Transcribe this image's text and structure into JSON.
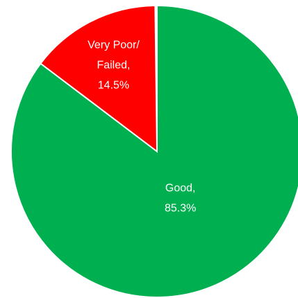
{
  "chart_data": {
    "type": "pie",
    "values": [
      85.3,
      14.5
    ],
    "value_labels": [
      "85.3%",
      "14.5%"
    ],
    "category_labels": [
      [
        "Good,"
      ],
      [
        "Very Poor/",
        "Failed,"
      ]
    ],
    "colors": [
      "#00b050",
      "#ff0000"
    ]
  }
}
